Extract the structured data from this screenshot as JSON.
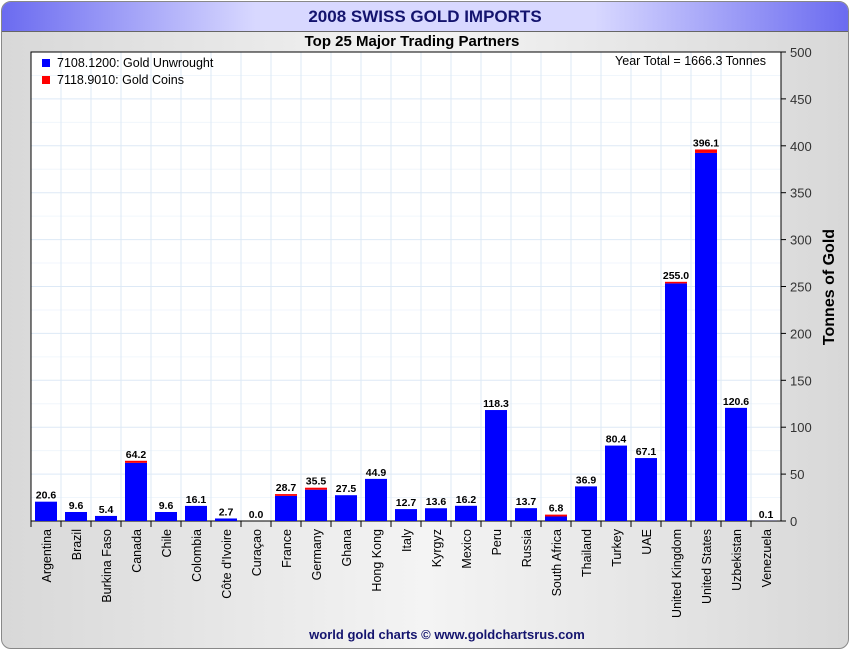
{
  "title": "2008 SWISS GOLD IMPORTS",
  "footer": "world gold charts © www.goldchartsrus.com",
  "colors": {
    "unwrought": "#0000ff",
    "coins": "#ff0000"
  },
  "chart_data": {
    "type": "bar",
    "stacked": true,
    "title": "Top 25 Major Trading Partners",
    "annotation": "Year Total = 1666.3 Tonnes",
    "xlabel": "",
    "ylabel": "Tonnes of Gold",
    "ylim": [
      0,
      500
    ],
    "yticks": [
      0,
      50,
      100,
      150,
      200,
      250,
      300,
      350,
      400,
      450,
      500
    ],
    "grid": true,
    "legend_position": "top-left",
    "categories": [
      "Argentina",
      "Brazil",
      "Burkina Faso",
      "Canada",
      "Chile",
      "Colombia",
      "Côte d'Ivoire",
      "Curaçao",
      "France",
      "Germany",
      "Ghana",
      "Hong Kong",
      "Italy",
      "Kyrgyz",
      "Mexico",
      "Peru",
      "Russia",
      "South Africa",
      "Thailand",
      "Turkey",
      "UAE",
      "United Kingdom",
      "United States",
      "Uzbekistan",
      "Venezuela"
    ],
    "totals": [
      "20.6",
      "9.6",
      "5.4",
      "64.2",
      "9.6",
      "16.1",
      "2.7",
      "0.0",
      "28.7",
      "35.5",
      "27.5",
      "44.9",
      "12.7",
      "13.6",
      "16.2",
      "118.3",
      "13.7",
      "6.8",
      "36.9",
      "80.4",
      "67.1",
      "255.0",
      "396.1",
      "120.6",
      "0.1"
    ],
    "series": [
      {
        "name": "7108.1200: Gold Unwrought",
        "values": [
          20.6,
          9.6,
          5.4,
          62.0,
          9.6,
          16.1,
          2.7,
          0.0,
          26.8,
          33.4,
          27.5,
          44.9,
          12.7,
          13.6,
          16.2,
          118.3,
          13.7,
          4.8,
          36.9,
          80.4,
          67.1,
          253.3,
          392.4,
          120.6,
          0.1
        ]
      },
      {
        "name": "7118.9010: Gold Coins",
        "values": [
          0,
          0,
          0,
          2.2,
          0,
          0,
          0,
          0,
          1.9,
          2.1,
          0,
          0,
          0,
          0,
          0,
          0,
          0,
          2.0,
          0,
          0,
          0,
          1.7,
          3.7,
          0,
          0
        ]
      }
    ]
  }
}
